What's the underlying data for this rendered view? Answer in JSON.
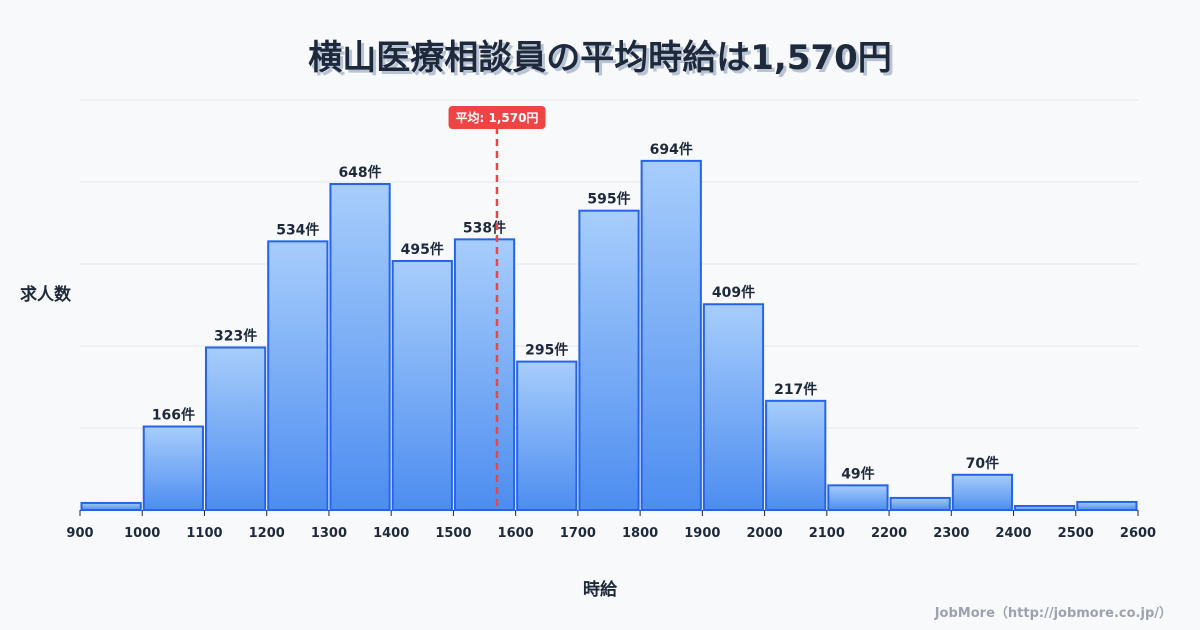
{
  "title": "横山医療相談員の平均時給は1,570円",
  "footer": "JobMore（http://jobmore.co.jp/）",
  "colors": {
    "bar_top": "#a7cdfb",
    "bar_bottom": "#4d8df0",
    "bar_stroke": "#2563eb",
    "mean_line": "#ef4444",
    "grid": "#e5e7eb",
    "text": "#1e293b"
  },
  "chart_data": {
    "type": "bar",
    "title": "横山医療相談員の平均時給は1,570円",
    "xlabel": "時給",
    "ylabel": "求人数",
    "x_ticks": [
      900,
      1000,
      1100,
      1200,
      1300,
      1400,
      1500,
      1600,
      1700,
      1800,
      1900,
      2000,
      2100,
      2200,
      2300,
      2400,
      2500,
      2600
    ],
    "categories": [
      "900-1000",
      "1000-1100",
      "1100-1200",
      "1200-1300",
      "1300-1400",
      "1400-1500",
      "1500-1600",
      "1600-1700",
      "1700-1800",
      "1800-1900",
      "1900-2000",
      "2000-2100",
      "2100-2200",
      "2200-2300",
      "2300-2400",
      "2400-2500",
      "2500-2600"
    ],
    "values": [
      14,
      166,
      323,
      534,
      648,
      495,
      538,
      295,
      595,
      694,
      409,
      217,
      49,
      24,
      70,
      8,
      16
    ],
    "labels": [
      "",
      "166件",
      "323件",
      "534件",
      "648件",
      "495件",
      "538件",
      "295件",
      "595件",
      "694件",
      "409件",
      "217件",
      "49件",
      "",
      "70件",
      "",
      ""
    ],
    "mean": {
      "value": 1570,
      "label": "平均: 1,570円"
    },
    "xlim": [
      900,
      2600
    ],
    "ylim": [
      0,
      815
    ],
    "grid": true,
    "legend": "none"
  }
}
